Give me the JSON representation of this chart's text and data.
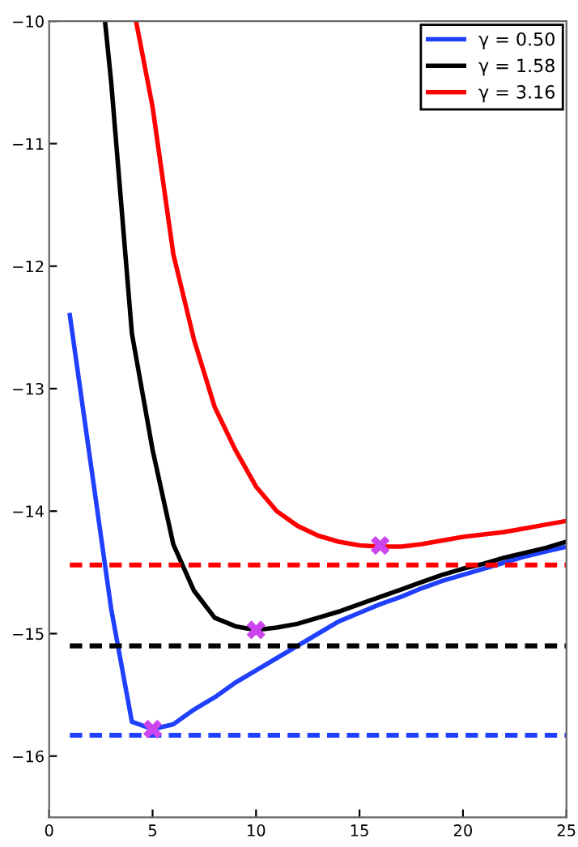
{
  "chart_data": {
    "type": "line",
    "xlim": [
      0,
      25
    ],
    "ylim": [
      -16.5,
      -10
    ],
    "xticks": [
      0,
      5,
      10,
      15,
      20,
      25
    ],
    "yticks": [
      -16,
      -15,
      -14,
      -13,
      -12,
      -11,
      -10
    ],
    "legend": "top right",
    "grid": false,
    "series": [
      {
        "name": "γ = 0.50",
        "color": "#2040ff",
        "x": [
          1,
          2,
          3,
          4,
          5,
          6,
          7,
          8,
          9,
          10,
          11,
          12,
          13,
          14,
          15,
          16,
          17,
          18,
          19,
          20,
          21,
          22,
          23,
          24,
          25
        ],
        "values": [
          -12.4,
          -13.6,
          -14.8,
          -15.72,
          -15.78,
          -15.74,
          -15.62,
          -15.52,
          -15.4,
          -15.3,
          -15.2,
          -15.1,
          -15.0,
          -14.9,
          -14.83,
          -14.76,
          -14.7,
          -14.63,
          -14.57,
          -14.52,
          -14.47,
          -14.42,
          -14.37,
          -14.33,
          -14.29
        ]
      },
      {
        "name": "γ = 1.58",
        "color": "#000000",
        "x": [
          2.7,
          3,
          4,
          5,
          6,
          7,
          8,
          9,
          10,
          11,
          12,
          13,
          14,
          15,
          16,
          17,
          18,
          19,
          20,
          21,
          22,
          23,
          24,
          25
        ],
        "values": [
          -10,
          -10.5,
          -12.55,
          -13.5,
          -14.27,
          -14.65,
          -14.87,
          -14.94,
          -14.97,
          -14.95,
          -14.92,
          -14.87,
          -14.82,
          -14.76,
          -14.7,
          -14.64,
          -14.58,
          -14.52,
          -14.47,
          -14.43,
          -14.38,
          -14.34,
          -14.3,
          -14.25
        ]
      },
      {
        "name": "γ = 3.16",
        "color": "#ff0000",
        "x": [
          4.2,
          5,
          6,
          7,
          8,
          9,
          10,
          11,
          12,
          13,
          14,
          15,
          16,
          17,
          18,
          19,
          20,
          21,
          22,
          23,
          24,
          25
        ],
        "values": [
          -10,
          -10.7,
          -11.9,
          -12.6,
          -13.15,
          -13.5,
          -13.8,
          -14.0,
          -14.12,
          -14.2,
          -14.25,
          -14.28,
          -14.29,
          -14.29,
          -14.27,
          -14.24,
          -14.21,
          -14.19,
          -14.17,
          -14.14,
          -14.11,
          -14.08
        ]
      },
      {
        "color": "#2040ff",
        "line_style": "dashed",
        "x": [
          1,
          25
        ],
        "values": [
          -15.83,
          -15.83
        ]
      },
      {
        "color": "#000000",
        "line_style": "dashed",
        "x": [
          1,
          25
        ],
        "values": [
          -15.1,
          -15.1
        ]
      },
      {
        "color": "#ff0000",
        "line_style": "dashed",
        "x": [
          1,
          25
        ],
        "values": [
          -14.44,
          -14.44
        ]
      },
      {
        "type": "scatter",
        "marker": "cross",
        "color": "#cc44ee",
        "x": [
          5,
          10,
          16
        ],
        "values": [
          -15.78,
          -14.97,
          -14.28
        ]
      }
    ]
  }
}
